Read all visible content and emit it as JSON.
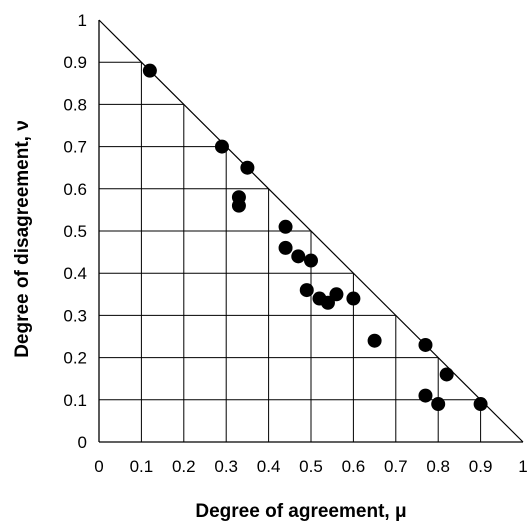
{
  "chart_data": {
    "type": "scatter",
    "xlabel": "Degree of agreement, μ",
    "ylabel": "Degree of disagreement, ν",
    "xlim": [
      0,
      1
    ],
    "ylim": [
      0,
      1
    ],
    "x_ticks": [
      "0",
      "0.1",
      "0.2",
      "0.3",
      "0.4",
      "0.5",
      "0.6",
      "0.7",
      "0.8",
      "0.9",
      "1"
    ],
    "y_ticks": [
      "0",
      "0.1",
      "0.2",
      "0.3",
      "0.4",
      "0.5",
      "0.6",
      "0.7",
      "0.8",
      "0.9",
      "1"
    ],
    "grid": "vertical and horizontal segments below the line μ + ν = 1",
    "boundary_line": "μ + ν = 1",
    "points": [
      {
        "x": 0.12,
        "y": 0.88
      },
      {
        "x": 0.29,
        "y": 0.7
      },
      {
        "x": 0.35,
        "y": 0.65
      },
      {
        "x": 0.33,
        "y": 0.58
      },
      {
        "x": 0.33,
        "y": 0.56
      },
      {
        "x": 0.44,
        "y": 0.51
      },
      {
        "x": 0.44,
        "y": 0.46
      },
      {
        "x": 0.47,
        "y": 0.44
      },
      {
        "x": 0.5,
        "y": 0.43
      },
      {
        "x": 0.49,
        "y": 0.36
      },
      {
        "x": 0.52,
        "y": 0.34
      },
      {
        "x": 0.54,
        "y": 0.33
      },
      {
        "x": 0.56,
        "y": 0.35
      },
      {
        "x": 0.6,
        "y": 0.34
      },
      {
        "x": 0.65,
        "y": 0.24
      },
      {
        "x": 0.77,
        "y": 0.23
      },
      {
        "x": 0.82,
        "y": 0.16
      },
      {
        "x": 0.77,
        "y": 0.11
      },
      {
        "x": 0.8,
        "y": 0.09
      },
      {
        "x": 0.9,
        "y": 0.09
      }
    ]
  }
}
